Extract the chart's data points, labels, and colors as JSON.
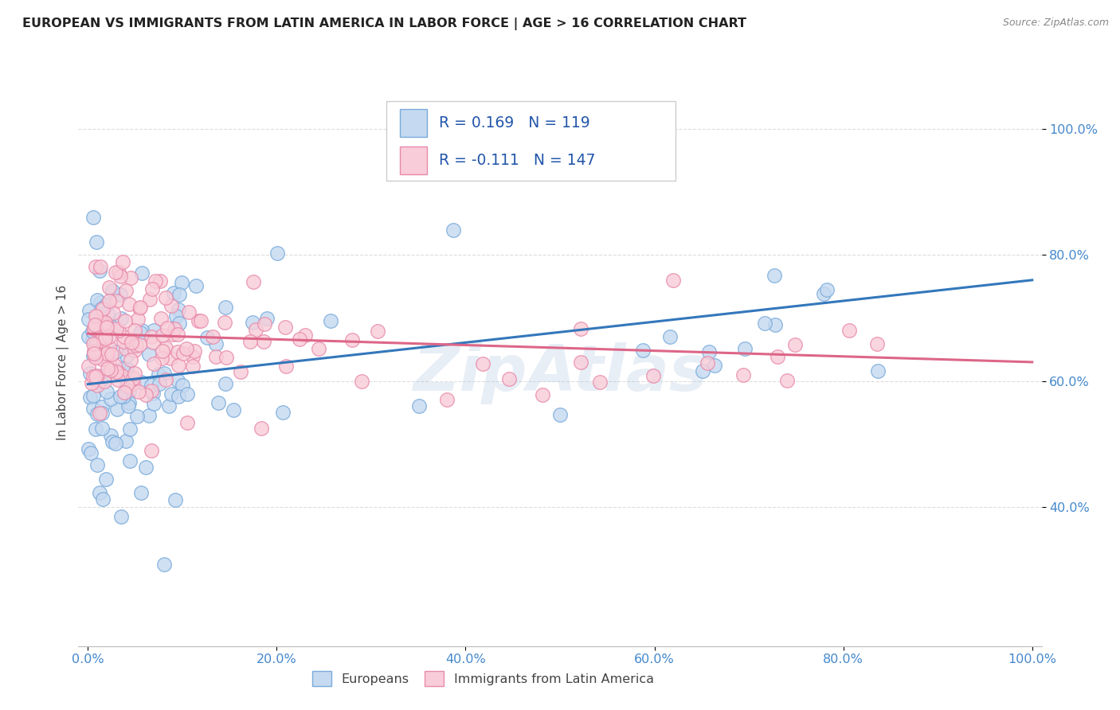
{
  "title": "EUROPEAN VS IMMIGRANTS FROM LATIN AMERICA IN LABOR FORCE | AGE > 16 CORRELATION CHART",
  "source": "Source: ZipAtlas.com",
  "ylabel": "In Labor Force | Age > 16",
  "xlim": [
    -0.01,
    1.01
  ],
  "ylim": [
    0.18,
    1.08
  ],
  "xticks": [
    0.0,
    0.2,
    0.4,
    0.6,
    0.8,
    1.0
  ],
  "yticks": [
    0.4,
    0.6,
    0.8,
    1.0
  ],
  "xticklabels": [
    "0.0%",
    "20.0%",
    "40.0%",
    "60.0%",
    "80.0%",
    "100.0%"
  ],
  "yticklabels": [
    "40.0%",
    "60.0%",
    "80.0%",
    "100.0%"
  ],
  "european_color": "#c5d9f0",
  "european_edge_color": "#7aabdb",
  "latin_color": "#f8ccd8",
  "latin_edge_color": "#e88aab",
  "european_line_color": "#3377bb",
  "latin_line_color": "#dd6688",
  "R_european": 0.169,
  "N_european": 119,
  "R_latin": -0.111,
  "N_latin": 147,
  "legend_label_european": "Europeans",
  "legend_label_latin": "Immigrants from Latin America",
  "watermark": "ZipAtlas",
  "background_color": "#ffffff",
  "grid_color": "#dddddd",
  "title_color": "#222222",
  "axis_label_color": "#444444",
  "tick_color": "#4488cc",
  "seed": 99,
  "eu_intercept": 0.595,
  "eu_slope": 0.165,
  "la_intercept": 0.675,
  "la_slope": -0.045,
  "eu_noise": 0.1,
  "la_noise": 0.065
}
